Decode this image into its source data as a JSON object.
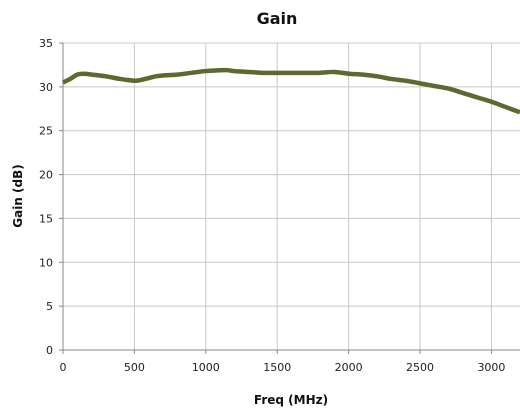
{
  "chart_data": {
    "type": "line",
    "title": "Gain",
    "xlabel": "Freq (MHz)",
    "ylabel": "Gain (dB)",
    "xlim": [
      0,
      3200
    ],
    "ylim": [
      0,
      35
    ],
    "xticks": [
      0,
      500,
      1000,
      1500,
      2000,
      2500,
      3000
    ],
    "yticks": [
      0,
      5,
      10,
      15,
      20,
      25,
      30,
      35
    ],
    "grid": true,
    "legend": "none",
    "series": [
      {
        "color": "#5b6b2f",
        "x": [
          0,
          50,
          100,
          150,
          200,
          300,
          400,
          500,
          550,
          600,
          650,
          700,
          800,
          900,
          1000,
          1100,
          1150,
          1200,
          1300,
          1400,
          1500,
          1600,
          1700,
          1800,
          1900,
          2000,
          2100,
          2200,
          2300,
          2400,
          2500,
          2600,
          2700,
          2800,
          2900,
          3000,
          3100,
          3200
        ],
        "y": [
          30.5,
          30.9,
          31.4,
          31.5,
          31.4,
          31.2,
          30.9,
          30.7,
          30.8,
          31.0,
          31.2,
          31.3,
          31.4,
          31.6,
          31.8,
          31.9,
          31.9,
          31.8,
          31.7,
          31.6,
          31.6,
          31.6,
          31.6,
          31.6,
          31.7,
          31.5,
          31.4,
          31.2,
          30.9,
          30.7,
          30.4,
          30.1,
          29.8,
          29.3,
          28.8,
          28.3,
          27.7,
          27.1
        ]
      }
    ]
  }
}
